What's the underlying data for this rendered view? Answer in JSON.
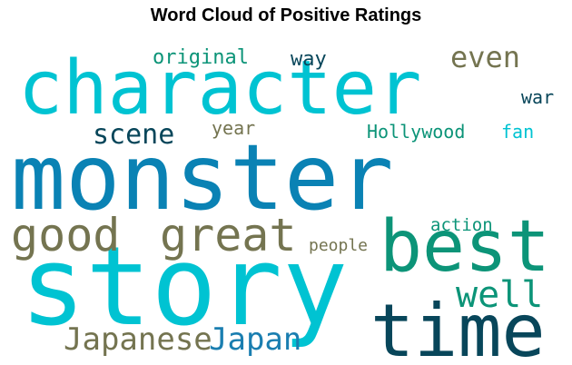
{
  "chart_data": {
    "type": "wordcloud",
    "title": "Word Cloud of Positive Ratings",
    "words": [
      {
        "text": "monster",
        "color": "#0a82b4"
      },
      {
        "text": "story",
        "color": "#00c3d2"
      },
      {
        "text": "character",
        "color": "#00c3d2"
      },
      {
        "text": "time",
        "color": "#08465a"
      },
      {
        "text": "best",
        "color": "#0c9478"
      },
      {
        "text": "great",
        "color": "#747450"
      },
      {
        "text": "good",
        "color": "#747450"
      },
      {
        "text": "Japan",
        "color": "#1a7eb0"
      },
      {
        "text": "Japanese",
        "color": "#747450"
      },
      {
        "text": "well",
        "color": "#0c9478"
      },
      {
        "text": "scene",
        "color": "#08465a"
      },
      {
        "text": "even",
        "color": "#747450"
      },
      {
        "text": "original",
        "color": "#0c9478"
      },
      {
        "text": "way",
        "color": "#08465a"
      },
      {
        "text": "war",
        "color": "#08465a"
      },
      {
        "text": "year",
        "color": "#747450"
      },
      {
        "text": "Hollywood",
        "color": "#0c9478"
      },
      {
        "text": "fan",
        "color": "#00c3d2"
      },
      {
        "text": "action",
        "color": "#0c9478"
      },
      {
        "text": "people",
        "color": "#747450"
      }
    ]
  }
}
